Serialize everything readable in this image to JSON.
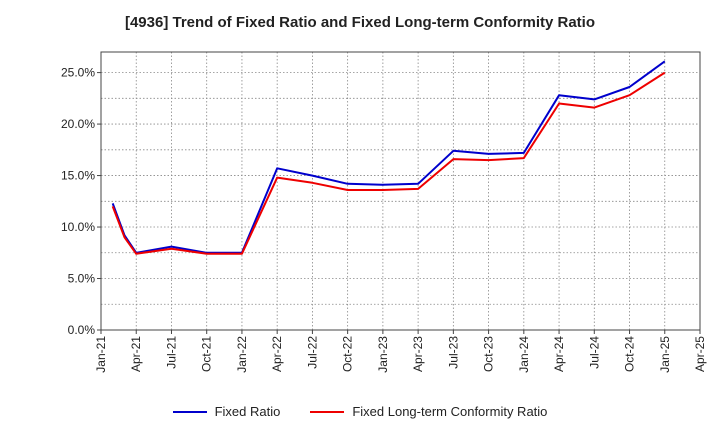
{
  "chart_data": {
    "type": "line",
    "title": "[4936]  Trend of Fixed Ratio and Fixed Long-term Conformity Ratio",
    "xlabel": "",
    "ylabel": "",
    "ylim": [
      0,
      27
    ],
    "yticks": [
      "0.0%",
      "5.0%",
      "10.0%",
      "15.0%",
      "20.0%",
      "25.0%"
    ],
    "ytick_values": [
      0,
      5,
      10,
      15,
      20,
      25
    ],
    "xticks": [
      "Jan-21",
      "Apr-21",
      "Jul-21",
      "Oct-21",
      "Jan-22",
      "Apr-22",
      "Jul-22",
      "Oct-22",
      "Jan-23",
      "Apr-23",
      "Jul-23",
      "Oct-23",
      "Jan-24",
      "Apr-24",
      "Jul-24",
      "Oct-24",
      "Jan-25",
      "Apr-25"
    ],
    "x": [
      "Feb-21",
      "Mar-21",
      "Apr-21",
      "Jul-21",
      "Oct-21",
      "Jan-22",
      "Apr-22",
      "Jul-22",
      "Oct-22",
      "Jan-23",
      "Apr-23",
      "Jul-23",
      "Oct-23",
      "Jan-24",
      "Apr-24",
      "Jul-24",
      "Oct-24",
      "Jan-25"
    ],
    "x_index": [
      1,
      2,
      3,
      6,
      9,
      12,
      15,
      18,
      21,
      24,
      27,
      30,
      33,
      36,
      39,
      42,
      45,
      48
    ],
    "series": [
      {
        "name": "Fixed Ratio",
        "color": "#0000cc",
        "values": [
          12.3,
          9.2,
          7.5,
          8.1,
          7.5,
          7.5,
          15.7,
          15.0,
          14.2,
          14.1,
          14.2,
          17.4,
          17.1,
          17.2,
          22.8,
          22.4,
          23.6,
          26.1
        ]
      },
      {
        "name": "Fixed Long-term Conformity Ratio",
        "color": "#ee0000",
        "values": [
          12.0,
          9.0,
          7.4,
          7.9,
          7.4,
          7.4,
          14.8,
          14.3,
          13.6,
          13.6,
          13.7,
          16.6,
          16.5,
          16.7,
          22.0,
          21.6,
          22.8,
          25.0
        ]
      }
    ],
    "legend_position": "bottom-center",
    "grid": true
  }
}
